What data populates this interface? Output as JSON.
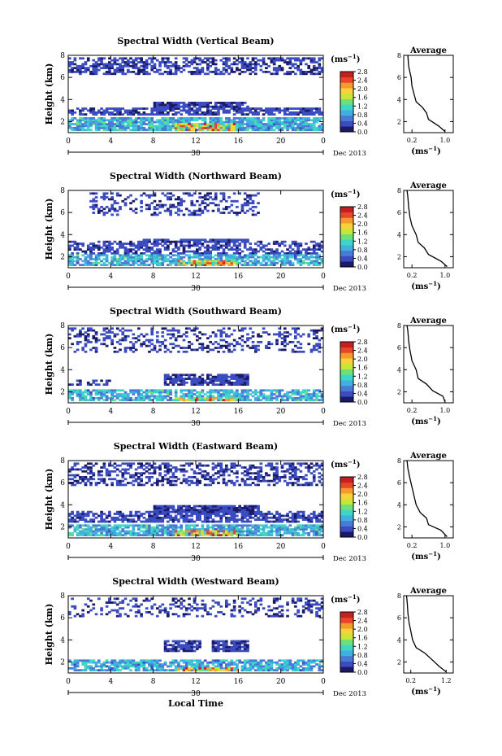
{
  "figure": {
    "date_label": "Dec 2013",
    "day_label": "30",
    "bottom_xlabel": "Local Time"
  },
  "colors": {
    "scale": [
      "#1a1a66",
      "#3b4cc0",
      "#4a7bd4",
      "#3fb0e0",
      "#3fd6c8",
      "#6ee07a",
      "#c8e636",
      "#f7d23a",
      "#f59a2c",
      "#e8462a",
      "#c51f1f"
    ]
  },
  "chart_data": [
    {
      "type": "heatmap",
      "title": "Spectral Width (Vertical Beam)",
      "xlabel": "",
      "ylabel": "Height (km)",
      "x_ticks": [
        "0",
        "4",
        "8",
        "12",
        "16",
        "20",
        "0"
      ],
      "y_ticks": [
        "2",
        "4",
        "6",
        "8"
      ],
      "xlim": [
        0,
        24
      ],
      "ylim": [
        1,
        8
      ],
      "colorbar": {
        "unit": "(ms",
        "exponent": "−1",
        "ticks": [
          "0.0",
          "0.4",
          "0.8",
          "1.2",
          "1.6",
          "2.0",
          "2.4",
          "2.8"
        ],
        "range": [
          0,
          2.8
        ]
      },
      "layers": [
        {
          "x": [
            0,
            24
          ],
          "y": [
            6.3,
            7.9
          ],
          "value": 0.3,
          "density": 0.55
        },
        {
          "x": [
            0,
            24
          ],
          "y": [
            2.5,
            3.3
          ],
          "value": 0.35,
          "density": 0.7
        },
        {
          "x": [
            8,
            17
          ],
          "y": [
            3.3,
            3.8
          ],
          "value": 0.3,
          "density": 0.85
        },
        {
          "x": [
            0,
            24
          ],
          "y": [
            1.1,
            2.4
          ],
          "value": 0.9,
          "density": 0.85
        },
        {
          "x": [
            10,
            16
          ],
          "y": [
            1.1,
            1.8
          ],
          "value": 1.9,
          "density": 0.8
        }
      ],
      "average": {
        "title": "Average",
        "xlabel": "(ms",
        "x_exponent": "−1",
        "x_ticks": [
          "0.2",
          "1.0"
        ],
        "xlim": [
          0,
          1.2
        ],
        "y_ticks": [
          "2",
          "4",
          "6",
          "8"
        ],
        "ylim": [
          1,
          8
        ],
        "profile": [
          [
            1.0,
            1.1
          ],
          [
            0.85,
            1.6
          ],
          [
            0.6,
            2.2
          ],
          [
            0.55,
            2.8
          ],
          [
            0.45,
            3.3
          ],
          [
            0.3,
            3.8
          ],
          [
            0.25,
            4.5
          ],
          [
            0.2,
            5.2
          ],
          [
            0.18,
            6.0
          ],
          [
            0.12,
            7.0
          ],
          [
            0.1,
            8.0
          ]
        ]
      }
    },
    {
      "type": "heatmap",
      "title": "Spectral Width (Northward Beam)",
      "xlabel": "",
      "ylabel": "Height (km)",
      "x_ticks": [
        "0",
        "4",
        "8",
        "12",
        "16",
        "20",
        "0"
      ],
      "y_ticks": [
        "2",
        "4",
        "6",
        "8"
      ],
      "xlim": [
        0,
        24
      ],
      "ylim": [
        1,
        8
      ],
      "colorbar": {
        "unit": "(ms",
        "exponent": "−1",
        "ticks": [
          "0.0",
          "0.4",
          "0.8",
          "1.2",
          "1.6",
          "2.0",
          "2.4",
          "2.8"
        ],
        "range": [
          0,
          2.8
        ]
      },
      "layers": [
        {
          "x": [
            2,
            18
          ],
          "y": [
            5.8,
            7.9
          ],
          "value": 0.3,
          "density": 0.35
        },
        {
          "x": [
            0,
            24
          ],
          "y": [
            2.3,
            3.5
          ],
          "value": 0.35,
          "density": 0.55
        },
        {
          "x": [
            7,
            17
          ],
          "y": [
            3.2,
            3.7
          ],
          "value": 0.3,
          "density": 0.85
        },
        {
          "x": [
            0,
            24
          ],
          "y": [
            1.1,
            2.2
          ],
          "value": 0.9,
          "density": 0.75
        },
        {
          "x": [
            10,
            16
          ],
          "y": [
            1.1,
            1.7
          ],
          "value": 1.8,
          "density": 0.8
        }
      ],
      "average": {
        "title": "Average",
        "xlabel": "(ms",
        "x_exponent": "−1",
        "x_ticks": [
          "0.2",
          "1.0"
        ],
        "xlim": [
          0,
          1.2
        ],
        "y_ticks": [
          "2",
          "4",
          "6",
          "8"
        ],
        "ylim": [
          1,
          8
        ],
        "profile": [
          [
            1.05,
            1.1
          ],
          [
            0.9,
            1.6
          ],
          [
            0.6,
            2.2
          ],
          [
            0.5,
            2.8
          ],
          [
            0.35,
            3.3
          ],
          [
            0.3,
            4.0
          ],
          [
            0.2,
            4.8
          ],
          [
            0.15,
            5.6
          ],
          [
            0.12,
            6.5
          ],
          [
            0.1,
            7.4
          ],
          [
            0.08,
            8.0
          ]
        ]
      }
    },
    {
      "type": "heatmap",
      "title": "Spectral Width (Southward Beam)",
      "xlabel": "",
      "ylabel": "Height (km)",
      "x_ticks": [
        "0",
        "4",
        "8",
        "12",
        "16",
        "20",
        "0"
      ],
      "y_ticks": [
        "2",
        "4",
        "6",
        "8"
      ],
      "xlim": [
        0,
        24
      ],
      "ylim": [
        1,
        8
      ],
      "colorbar": {
        "unit": "(ms",
        "exponent": "−1",
        "ticks": [
          "0.0",
          "0.4",
          "0.8",
          "1.2",
          "1.6",
          "2.0",
          "2.4",
          "2.8"
        ],
        "range": [
          0,
          2.8
        ]
      },
      "layers": [
        {
          "x": [
            0,
            24
          ],
          "y": [
            5.5,
            7.9
          ],
          "value": 0.3,
          "density": 0.3
        },
        {
          "x": [
            9,
            17
          ],
          "y": [
            2.6,
            3.6
          ],
          "value": 0.3,
          "density": 0.85
        },
        {
          "x": [
            0,
            4
          ],
          "y": [
            2.5,
            3.1
          ],
          "value": 0.3,
          "density": 0.5
        },
        {
          "x": [
            0,
            24
          ],
          "y": [
            1.1,
            2.2
          ],
          "value": 0.9,
          "density": 0.75
        },
        {
          "x": [
            10,
            16
          ],
          "y": [
            1.1,
            1.6
          ],
          "value": 1.8,
          "density": 0.7
        }
      ],
      "average": {
        "title": "Average",
        "xlabel": "(ms",
        "x_exponent": "−1",
        "x_ticks": [
          "0.2",
          "1.0"
        ],
        "xlim": [
          0,
          1.2
        ],
        "y_ticks": [
          "2",
          "4",
          "6",
          "8"
        ],
        "ylim": [
          1,
          8
        ],
        "profile": [
          [
            1.0,
            1.1
          ],
          [
            0.95,
            1.6
          ],
          [
            0.7,
            2.1
          ],
          [
            0.55,
            2.7
          ],
          [
            0.35,
            3.2
          ],
          [
            0.3,
            4.0
          ],
          [
            0.2,
            4.8
          ],
          [
            0.15,
            5.8
          ],
          [
            0.12,
            6.6
          ],
          [
            0.1,
            7.5
          ],
          [
            0.08,
            8.0
          ]
        ]
      }
    },
    {
      "type": "heatmap",
      "title": "Spectral Width (Eastward Beam)",
      "xlabel": "",
      "ylabel": "Height (km)",
      "x_ticks": [
        "0",
        "4",
        "8",
        "12",
        "16",
        "20",
        "0"
      ],
      "y_ticks": [
        "2",
        "4",
        "6",
        "8"
      ],
      "xlim": [
        0,
        24
      ],
      "ylim": [
        1,
        8
      ],
      "colorbar": {
        "unit": "(ms",
        "exponent": "−1",
        "ticks": [
          "0.0",
          "0.4",
          "0.8",
          "1.2",
          "1.6",
          "2.0",
          "2.4",
          "2.8"
        ],
        "range": [
          0,
          2.8
        ]
      },
      "layers": [
        {
          "x": [
            0,
            24
          ],
          "y": [
            5.8,
            7.9
          ],
          "value": 0.3,
          "density": 0.45
        },
        {
          "x": [
            0,
            24
          ],
          "y": [
            2.4,
            3.4
          ],
          "value": 0.35,
          "density": 0.65
        },
        {
          "x": [
            8,
            18
          ],
          "y": [
            3.2,
            3.9
          ],
          "value": 0.3,
          "density": 0.9
        },
        {
          "x": [
            0,
            24
          ],
          "y": [
            1.1,
            2.3
          ],
          "value": 0.9,
          "density": 0.8
        },
        {
          "x": [
            10,
            16
          ],
          "y": [
            1.1,
            1.7
          ],
          "value": 1.9,
          "density": 0.8
        }
      ],
      "average": {
        "title": "Average",
        "xlabel": "(ms",
        "x_exponent": "−1",
        "x_ticks": [
          "0.2",
          "1.0"
        ],
        "xlim": [
          0,
          1.2
        ],
        "y_ticks": [
          "2",
          "4",
          "6",
          "8"
        ],
        "ylim": [
          1,
          8
        ],
        "profile": [
          [
            1.05,
            1.1
          ],
          [
            0.9,
            1.7
          ],
          [
            0.6,
            2.2
          ],
          [
            0.55,
            2.8
          ],
          [
            0.4,
            3.3
          ],
          [
            0.3,
            4.0
          ],
          [
            0.25,
            4.8
          ],
          [
            0.2,
            5.6
          ],
          [
            0.15,
            6.4
          ],
          [
            0.1,
            7.3
          ],
          [
            0.08,
            8.0
          ]
        ]
      }
    },
    {
      "type": "heatmap",
      "title": "Spectral Width (Westward Beam)",
      "xlabel": "Local Time",
      "ylabel": "Height (km)",
      "x_ticks": [
        "0",
        "4",
        "8",
        "12",
        "16",
        "20",
        "0"
      ],
      "y_ticks": [
        "2",
        "4",
        "6",
        "8"
      ],
      "xlim": [
        0,
        24
      ],
      "ylim": [
        1,
        8
      ],
      "colorbar": {
        "unit": "(ms",
        "exponent": "−1",
        "ticks": [
          "0.0",
          "0.4",
          "0.8",
          "1.2",
          "1.6",
          "2.0",
          "2.4",
          "2.8"
        ],
        "range": [
          0,
          2.8
        ]
      },
      "layers": [
        {
          "x": [
            0,
            24
          ],
          "y": [
            6.0,
            7.9
          ],
          "value": 0.3,
          "density": 0.3
        },
        {
          "x": [
            9,
            12.5
          ],
          "y": [
            2.9,
            3.9
          ],
          "value": 0.3,
          "density": 0.85
        },
        {
          "x": [
            13.5,
            17
          ],
          "y": [
            2.9,
            3.9
          ],
          "value": 0.3,
          "density": 0.85
        },
        {
          "x": [
            0,
            24
          ],
          "y": [
            1.1,
            2.3
          ],
          "value": 0.85,
          "density": 0.75
        },
        {
          "x": [
            10,
            16
          ],
          "y": [
            1.1,
            1.6
          ],
          "value": 1.9,
          "density": 0.7
        }
      ],
      "average": {
        "title": "Average",
        "xlabel": "(ms",
        "x_exponent": "−1",
        "x_ticks": [
          "0.2",
          "1.2"
        ],
        "xlim": [
          0,
          1.4
        ],
        "y_ticks": [
          "2",
          "4",
          "6",
          "8"
        ],
        "ylim": [
          1,
          8
        ],
        "profile": [
          [
            1.2,
            1.1
          ],
          [
            1.0,
            1.6
          ],
          [
            0.8,
            2.2
          ],
          [
            0.6,
            2.8
          ],
          [
            0.35,
            3.3
          ],
          [
            0.25,
            4.0
          ],
          [
            0.2,
            4.8
          ],
          [
            0.15,
            5.6
          ],
          [
            0.12,
            6.4
          ],
          [
            0.1,
            7.3
          ],
          [
            0.08,
            8.0
          ]
        ]
      }
    }
  ]
}
